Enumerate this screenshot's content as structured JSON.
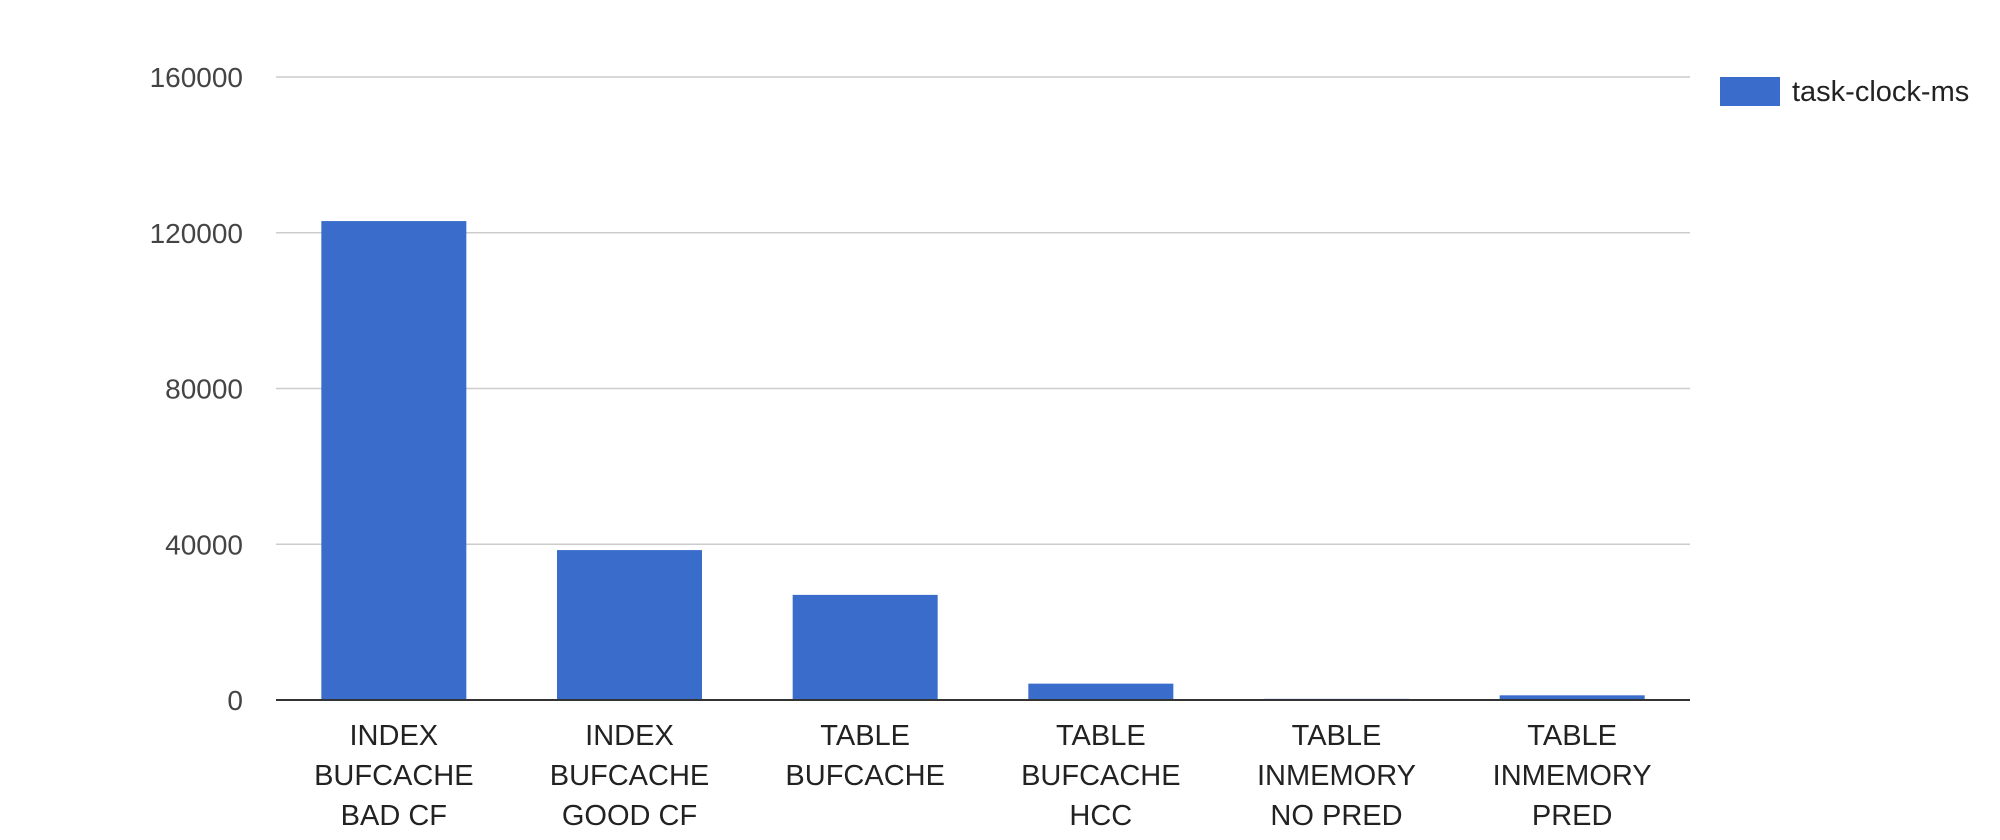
{
  "chart_data": {
    "type": "bar",
    "title": "",
    "xlabel": "",
    "ylabel": "",
    "categories": [
      [
        "INDEX",
        "BUFCACHE",
        "BAD CF"
      ],
      [
        "INDEX",
        "BUFCACHE",
        "GOOD CF"
      ],
      [
        "TABLE",
        "BUFCACHE"
      ],
      [
        "TABLE",
        "BUFCACHE",
        "HCC"
      ],
      [
        "TABLE",
        "INMEMORY",
        "NO PRED"
      ],
      [
        "TABLE",
        "INMEMORY",
        "PRED"
      ]
    ],
    "series": [
      {
        "name": "task-clock-ms",
        "color": "#3a6ccb",
        "values": [
          123000,
          38500,
          27000,
          4200,
          300,
          1200
        ]
      }
    ],
    "ylim": [
      0,
      160000
    ],
    "yticks": [
      "0",
      "40000",
      "80000",
      "120000",
      "160000"
    ],
    "grid": true,
    "legend_position": "top-right",
    "gridline_color": "#cccccc",
    "axis_color": "#333333"
  }
}
